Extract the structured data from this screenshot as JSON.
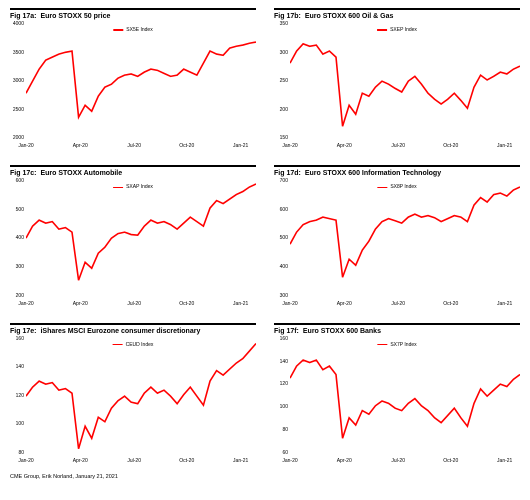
{
  "styling": {
    "line_color": "#ff0000",
    "rule_color": "#000000",
    "line_width": 1.6,
    "background": "#ffffff",
    "title_fontsize": 7,
    "axis_fontsize": 5,
    "legend_fontsize": 5
  },
  "panels": [
    {
      "fig_label": "Fig 17a:",
      "title": "Euro STOXX 50 price",
      "legend": "SX5E Index",
      "ymin": 2000,
      "ymax": 4000,
      "yticks": [
        "4000",
        "3500",
        "3000",
        "2500",
        "2000"
      ],
      "xticks": [
        "Jan-20",
        "Apr-20",
        "Jul-20",
        "Oct-20",
        "Jan-21"
      ],
      "series": [
        2800,
        3000,
        3200,
        3350,
        3400,
        3450,
        3480,
        3500,
        2400,
        2600,
        2500,
        2750,
        2900,
        2950,
        3050,
        3100,
        3120,
        3080,
        3150,
        3200,
        3180,
        3130,
        3080,
        3100,
        3200,
        3150,
        3100,
        3300,
        3500,
        3450,
        3430,
        3550,
        3580,
        3600,
        3630,
        3650
      ]
    },
    {
      "fig_label": "Fig 17b:",
      "title": "Euro STOXX 600 Oil & Gas",
      "legend": "SXEP Index",
      "ymin": 150,
      "ymax": 350,
      "yticks": [
        "350",
        "300",
        "250",
        "200",
        "150"
      ],
      "xticks": [
        "Jan-20",
        "Apr-20",
        "Jul-20",
        "Oct-20",
        "Jan-21"
      ],
      "series": [
        280,
        300,
        312,
        308,
        310,
        295,
        300,
        290,
        175,
        210,
        195,
        230,
        225,
        240,
        250,
        245,
        238,
        232,
        250,
        258,
        245,
        230,
        220,
        212,
        220,
        230,
        218,
        205,
        240,
        260,
        252,
        258,
        265,
        262,
        270,
        275
      ]
    },
    {
      "fig_label": "Fig 17c:",
      "title": "Euro STOXX Automobile",
      "legend": "SXAP Index",
      "ymin": 200,
      "ymax": 600,
      "yticks": [
        "600",
        "500",
        "400",
        "300",
        "200"
      ],
      "xticks": [
        "Jan-20",
        "Apr-20",
        "Jul-20",
        "Oct-20",
        "Jan-21"
      ],
      "series": [
        400,
        440,
        460,
        450,
        455,
        430,
        435,
        420,
        260,
        320,
        300,
        350,
        370,
        400,
        415,
        420,
        412,
        410,
        440,
        460,
        450,
        455,
        445,
        430,
        450,
        470,
        455,
        440,
        500,
        525,
        515,
        530,
        545,
        555,
        570,
        580
      ]
    },
    {
      "fig_label": "Fig 17d:",
      "title": "Euro STOXX 600 Information Technology",
      "legend": "SX8P Index",
      "ymin": 300,
      "ymax": 700,
      "yticks": [
        "700",
        "600",
        "500",
        "400",
        "300"
      ],
      "xticks": [
        "Jan-20",
        "Apr-20",
        "Jul-20",
        "Oct-20",
        "Jan-21"
      ],
      "series": [
        480,
        520,
        545,
        555,
        560,
        570,
        565,
        560,
        370,
        430,
        410,
        460,
        490,
        530,
        555,
        565,
        558,
        550,
        570,
        580,
        570,
        575,
        568,
        555,
        565,
        575,
        570,
        555,
        610,
        635,
        620,
        645,
        650,
        640,
        660,
        670
      ]
    },
    {
      "fig_label": "Fig 17e:",
      "title": "iShares MSCI Eurozone consumer discretionary",
      "legend": "CEUD Index",
      "ymin": 80,
      "ymax": 160,
      "yticks": [
        "160",
        "140",
        "120",
        "100",
        "80"
      ],
      "xticks": [
        "Jan-20",
        "Apr-20",
        "Jul-20",
        "Oct-20",
        "Jan-21"
      ],
      "series": [
        120,
        126,
        130,
        128,
        129,
        124,
        125,
        122,
        85,
        100,
        92,
        106,
        103,
        112,
        117,
        120,
        116,
        115,
        122,
        126,
        122,
        124,
        120,
        115,
        121,
        126,
        120,
        114,
        130,
        137,
        134,
        138,
        142,
        145,
        150,
        155
      ]
    },
    {
      "fig_label": "Fig 17f:",
      "title": "Euro STOXX 600 Banks",
      "legend": "SX7P Index",
      "ymin": 60,
      "ymax": 160,
      "yticks": [
        "160",
        "140",
        "120",
        "100",
        "80",
        "60"
      ],
      "xticks": [
        "Jan-20",
        "Apr-20",
        "Jul-20",
        "Oct-20",
        "Jan-21"
      ],
      "series": [
        125,
        135,
        140,
        138,
        140,
        132,
        135,
        128,
        75,
        92,
        86,
        98,
        95,
        102,
        106,
        104,
        100,
        98,
        104,
        108,
        102,
        98,
        92,
        88,
        94,
        100,
        92,
        85,
        104,
        116,
        110,
        115,
        120,
        118,
        124,
        128
      ]
    }
  ],
  "footer": "CME Group, Erik Norland, January 21, 2021"
}
